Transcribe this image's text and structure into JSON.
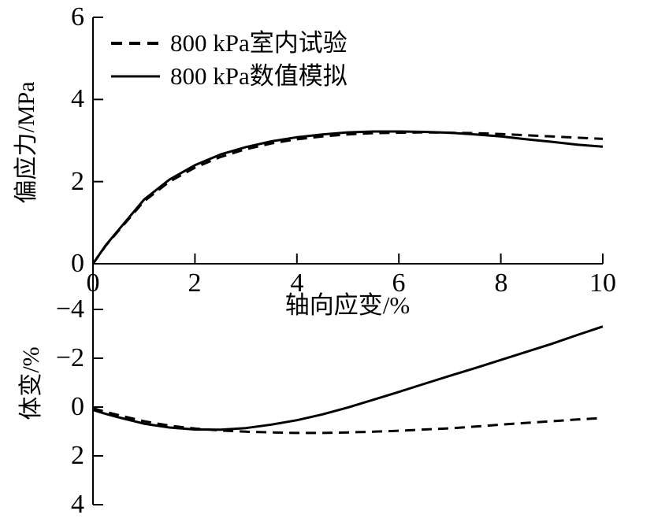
{
  "figure": {
    "background": "#ffffff",
    "line_color": "#000000"
  },
  "legend": {
    "position": "top-left-inside",
    "border": "none"
  },
  "chart_data": {
    "type": "line",
    "title": "",
    "x_label": "轴向应变/%",
    "x_lim": [
      0,
      10
    ],
    "x_ticks": [
      0,
      2,
      4,
      6,
      8,
      10
    ],
    "x_tick_labels": [
      "0",
      "2",
      "4",
      "6",
      "8",
      "10"
    ],
    "grid": "off",
    "plots": [
      {
        "id": "deviatoric-stress",
        "y_label": "偏应力/MPa",
        "y_lim": [
          0,
          6
        ],
        "y_ticks": [
          0,
          2,
          4,
          6
        ],
        "y_tick_labels": [
          "0",
          "2",
          "4",
          "6"
        ],
        "y_axis_inverted": false,
        "x": [
          0,
          0.25,
          0.5,
          1,
          1.5,
          2,
          2.5,
          3,
          3.5,
          4,
          4.5,
          5,
          5.5,
          6,
          6.5,
          7,
          7.5,
          8,
          8.5,
          9,
          9.5,
          10
        ],
        "series": [
          {
            "name": "800 kPa室内试验",
            "line_style": "dashed",
            "y": [
              0,
              0.44,
              0.8,
              1.52,
              2.0,
              2.34,
              2.6,
              2.79,
              2.93,
              3.03,
              3.1,
              3.15,
              3.18,
              3.19,
              3.2,
              3.19,
              3.18,
              3.16,
              3.13,
              3.1,
              3.07,
              3.04
            ]
          },
          {
            "name": "800 kPa数值模拟",
            "line_style": "solid",
            "y": [
              0,
              0.45,
              0.82,
              1.56,
              2.05,
              2.4,
              2.66,
              2.84,
              2.98,
              3.08,
              3.15,
              3.2,
              3.22,
              3.22,
              3.21,
              3.19,
              3.15,
              3.1,
              3.03,
              2.97,
              2.9,
              2.85
            ]
          }
        ]
      },
      {
        "id": "volumetric-strain",
        "y_label": "体变/%",
        "y_lim": [
          4,
          -4
        ],
        "y_ticks": [
          -4,
          -2,
          0,
          2,
          4
        ],
        "y_tick_labels": [
          "−4",
          "−2",
          "0",
          "2",
          "4"
        ],
        "y_axis_inverted": true,
        "x": [
          0,
          0.25,
          0.5,
          1,
          1.5,
          2,
          2.5,
          3,
          3.5,
          4,
          4.5,
          5,
          5.5,
          6,
          6.5,
          7,
          7.5,
          8,
          8.5,
          9,
          9.5,
          10
        ],
        "series": [
          {
            "name": "800 kPa室内试验",
            "line_style": "dashed",
            "y": [
              0.05,
              0.2,
              0.33,
              0.58,
              0.76,
              0.88,
              0.96,
              1.01,
              1.04,
              1.06,
              1.06,
              1.04,
              1.01,
              0.97,
              0.92,
              0.87,
              0.8,
              0.72,
              0.65,
              0.58,
              0.51,
              0.45
            ]
          },
          {
            "name": "800 kPa数值模拟",
            "line_style": "solid",
            "y": [
              0.12,
              0.28,
              0.42,
              0.68,
              0.84,
              0.92,
              0.93,
              0.86,
              0.72,
              0.54,
              0.3,
              0.02,
              -0.3,
              -0.62,
              -0.95,
              -1.28,
              -1.6,
              -1.93,
              -2.26,
              -2.59,
              -2.95,
              -3.3
            ]
          }
        ]
      }
    ]
  }
}
